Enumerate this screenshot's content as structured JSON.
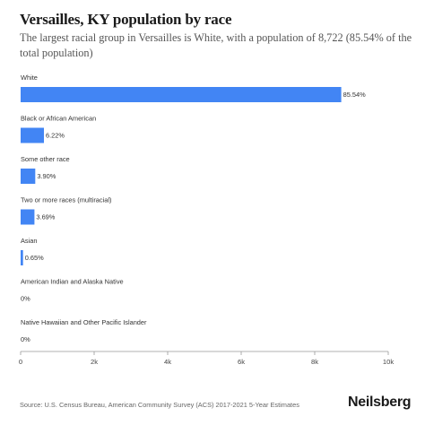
{
  "header": {
    "title": "Versailles, KY population by race",
    "subtitle": "The largest racial group in Versailles is White, with a population of 8,722 (85.54% of the total population)"
  },
  "chart_data": {
    "type": "bar",
    "orientation": "horizontal",
    "categories": [
      "White",
      "Black or African American",
      "Some other race",
      "Two or more races (multiracial)",
      "Asian",
      "American Indian and Alaska Native",
      "Native Hawaiian and Other Pacific Islander"
    ],
    "values": [
      8722,
      634,
      398,
      376,
      66,
      0,
      0
    ],
    "data_labels": [
      "85.54%",
      "6.22%",
      "3.90%",
      "3.69%",
      "0.65%",
      "0%",
      "0%"
    ],
    "xlim": [
      0,
      10000
    ],
    "xticks": [
      0,
      2000,
      4000,
      6000,
      8000,
      10000
    ],
    "xtick_labels": [
      "0",
      "2k",
      "4k",
      "6k",
      "8k",
      "10k"
    ],
    "grid": false,
    "bar_color": "#4285f4"
  },
  "footer": {
    "source": "Source: U.S. Census Bureau, American Community Survey (ACS) 2017-2021 5-Year Estimates",
    "brand": "Neilsberg"
  }
}
